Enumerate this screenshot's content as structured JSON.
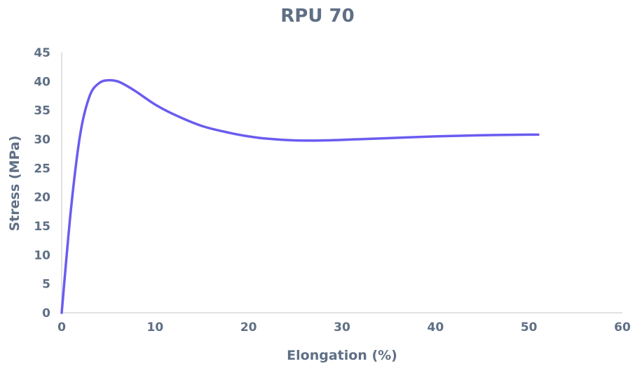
{
  "chart_data": {
    "type": "line",
    "title": "RPU 70",
    "xlabel": "Elongation (%)",
    "ylabel": "Stress (MPa)",
    "xlim": [
      0,
      60
    ],
    "ylim": [
      0,
      45
    ],
    "x_ticks": [
      "0",
      "10",
      "20",
      "30",
      "40",
      "50",
      "60"
    ],
    "y_ticks": [
      "0",
      "5",
      "10",
      "15",
      "20",
      "25",
      "30",
      "35",
      "40",
      "45"
    ],
    "grid": false,
    "legend": "none",
    "series": [
      {
        "color": "#6b5cf0",
        "x": [
          0,
          1,
          2,
          3,
          4,
          5,
          6,
          7,
          8,
          10,
          12,
          15,
          18,
          20,
          22,
          25,
          28,
          30,
          35,
          40,
          45,
          50,
          51
        ],
        "y": [
          0,
          18,
          31,
          37.5,
          39.7,
          40.2,
          40,
          39.2,
          38.2,
          36,
          34.3,
          32.3,
          31.1,
          30.5,
          30.1,
          29.8,
          29.8,
          29.9,
          30.2,
          30.5,
          30.7,
          30.8,
          30.8
        ]
      }
    ]
  }
}
